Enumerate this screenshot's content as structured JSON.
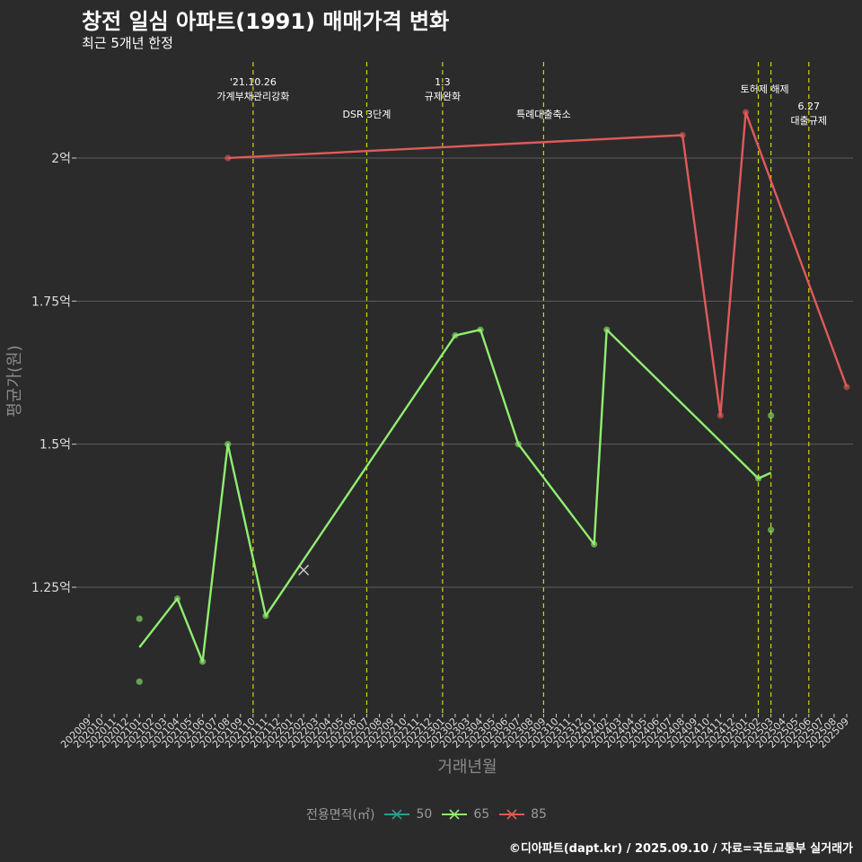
{
  "title": "창전 일심 아파트(1991) 매매가격 변화",
  "subtitle": "최근 5개년 한정",
  "caption": "©디아파트(dapt.kr) / 2025.09.10 / 자료=국토교통부 실거래가",
  "chart_data": {
    "type": "line",
    "xlabel": "거래년월",
    "ylabel": "평균가(원)",
    "x_categories": [
      "202009",
      "202010",
      "202011",
      "202012",
      "202101",
      "202102",
      "202103",
      "202104",
      "202105",
      "202106",
      "202107",
      "202108",
      "202109",
      "202110",
      "202111",
      "202112",
      "202201",
      "202202",
      "202203",
      "202204",
      "202205",
      "202206",
      "202207",
      "202208",
      "202209",
      "202210",
      "202211",
      "202212",
      "202301",
      "202302",
      "202303",
      "202304",
      "202305",
      "202306",
      "202307",
      "202308",
      "202309",
      "202310",
      "202311",
      "202312",
      "202401",
      "202402",
      "202403",
      "202404",
      "202405",
      "202406",
      "202407",
      "202408",
      "202409",
      "202410",
      "202411",
      "202412",
      "202501",
      "202502",
      "202503",
      "202504",
      "202505",
      "202506",
      "202507",
      "202508",
      "202509"
    ],
    "y_ticks": [
      {
        "value": 1.25,
        "label": "1.25억"
      },
      {
        "value": 1.5,
        "label": "1.5억"
      },
      {
        "value": 1.75,
        "label": "1.75억"
      },
      {
        "value": 2.0,
        "label": "2억"
      }
    ],
    "y_unit": "억원",
    "ylim": [
      1.03,
      2.14
    ],
    "grid": true,
    "legend": {
      "title": "전용면적(㎡)",
      "position": "bottom",
      "items": [
        {
          "label": "50",
          "color": "#2a9d8f"
        },
        {
          "label": "65",
          "color": "#90ee70"
        },
        {
          "label": "85",
          "color": "#e05a5a"
        }
      ]
    },
    "series": [
      {
        "name": "65",
        "color": "#90ee70",
        "line": [
          [
            "202101",
            1.145
          ],
          [
            "202104",
            1.23
          ],
          [
            "202106",
            1.12
          ],
          [
            "202108",
            1.5
          ],
          [
            "202111",
            1.2
          ],
          [
            "202302",
            1.69
          ],
          [
            "202304",
            1.7
          ],
          [
            "202307",
            1.5
          ],
          [
            "202401",
            1.325
          ],
          [
            "202402",
            1.7
          ],
          [
            "202502",
            1.44
          ],
          [
            "202503",
            1.45
          ]
        ],
        "points": [
          [
            "202101",
            1.195
          ],
          [
            "202101",
            1.085
          ],
          [
            "202104",
            1.23
          ],
          [
            "202106",
            1.12
          ],
          [
            "202108",
            1.5
          ],
          [
            "202111",
            1.2
          ],
          [
            "202302",
            1.69
          ],
          [
            "202304",
            1.7
          ],
          [
            "202307",
            1.5
          ],
          [
            "202401",
            1.325
          ],
          [
            "202402",
            1.7
          ],
          [
            "202502",
            1.44
          ],
          [
            "202503",
            1.55
          ],
          [
            "202503",
            1.35
          ]
        ],
        "cross_points": [
          [
            "202202",
            1.28
          ]
        ]
      },
      {
        "name": "85",
        "color": "#e05a5a",
        "line": [
          [
            "202108",
            2.0
          ],
          [
            "202408",
            2.04
          ],
          [
            "202411",
            1.55
          ],
          [
            "202501",
            2.08
          ],
          [
            "202509",
            1.6
          ]
        ],
        "points": [
          [
            "202108",
            2.0
          ],
          [
            "202408",
            2.04
          ],
          [
            "202411",
            1.55
          ],
          [
            "202501",
            2.08
          ],
          [
            "202509",
            1.6
          ]
        ]
      }
    ],
    "annotations": [
      {
        "x": "202110",
        "lines": [
          "'21.10.26",
          "가계부채관리강화"
        ],
        "row": 1
      },
      {
        "x": "202207",
        "lines": [
          "DSR 3단계"
        ],
        "row": 2
      },
      {
        "x": "202301",
        "lines": [
          "1.3",
          "규제완화"
        ],
        "row": 1
      },
      {
        "x": "202309",
        "lines": [
          "특례대출축소"
        ],
        "row": 2
      },
      {
        "x": "202502",
        "lines": [
          "토허제 해제"
        ],
        "row": 1,
        "anchor_x": "202502.5"
      },
      {
        "x": "202503",
        "lines": [],
        "row": 1
      },
      {
        "x": "202506",
        "lines": [
          "6.27",
          "대출규제"
        ],
        "row": 2
      }
    ],
    "vline_color": "#d4d400"
  }
}
